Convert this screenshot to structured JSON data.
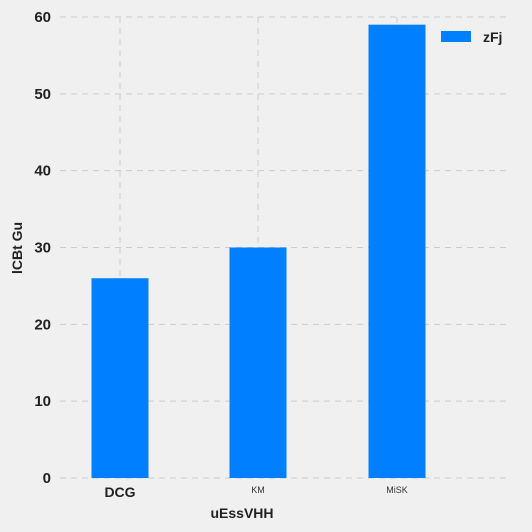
{
  "chart_data": {
    "type": "bar",
    "categories": [
      "DCG",
      "KM",
      "MiSK"
    ],
    "series": [
      {
        "name": "zFj",
        "values": [
          26,
          30,
          59
        ]
      }
    ],
    "xlabel": "uEssVHH",
    "ylabel": "lCBt Gu",
    "ylim": [
      0,
      60
    ],
    "yticks": [
      0,
      10,
      20,
      30,
      40,
      50,
      60
    ],
    "grid": true,
    "legend_position": "top-right",
    "colors": {
      "bar": "#0080ff",
      "background": "#f0f0f0",
      "grid": "#cccccc"
    }
  }
}
